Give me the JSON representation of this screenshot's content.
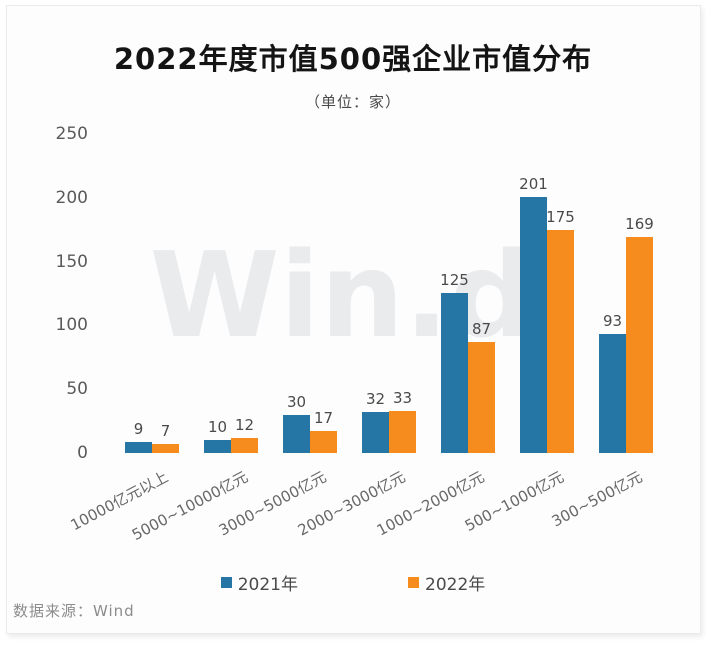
{
  "header": {
    "title": "2022年度市值500强企业市值分布",
    "unit_label": "（单位：家）"
  },
  "watermark": "Win.d",
  "source": "数据来源：Wind",
  "colors": {
    "series_2021": "#2576a4",
    "series_2022": "#f58c1d",
    "watermark": "#e9ebed"
  },
  "chart_data": {
    "type": "bar",
    "title": "2022年度市值500强企业市值分布",
    "subtitle": "（单位：家）",
    "categories": [
      "10000亿元以上",
      "5000~10000亿元",
      "3000~5000亿元",
      "2000~3000亿元",
      "1000~2000亿元",
      "500~1000亿元",
      "300~500亿元"
    ],
    "series": [
      {
        "name": "2021年",
        "color": "#2576a4",
        "values": [
          9,
          10,
          30,
          32,
          125,
          201,
          93
        ]
      },
      {
        "name": "2022年",
        "color": "#f58c1d",
        "values": [
          7,
          12,
          17,
          33,
          87,
          175,
          169
        ]
      }
    ],
    "xlabel": "",
    "ylabel": "",
    "ylim": [
      0,
      250
    ],
    "yticks": [
      0,
      50,
      100,
      150,
      200,
      250
    ],
    "grid": false,
    "value_labels": true,
    "legend_position": "bottom",
    "source": "数据来源：Wind",
    "watermark": "Win.d"
  }
}
